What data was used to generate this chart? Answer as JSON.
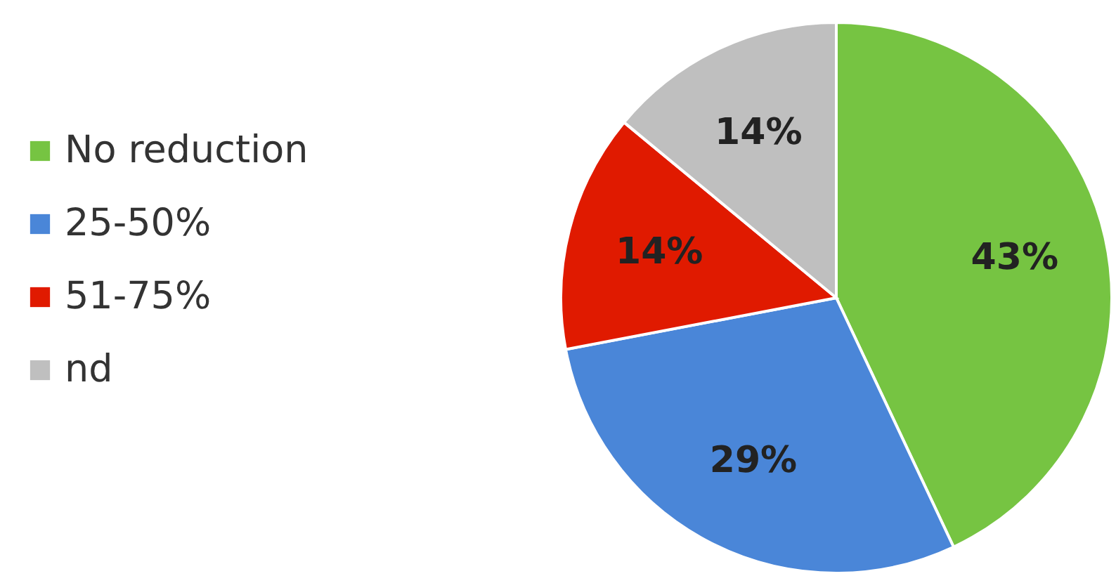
{
  "chart_data": {
    "type": "pie",
    "categories": [
      "No reduction",
      "25-50%",
      "51-75%",
      "nd"
    ],
    "values": [
      43,
      29,
      14,
      14
    ],
    "colors": [
      "#76c442",
      "#4a86d8",
      "#e01a00",
      "#bfbfbf"
    ],
    "value_labels": [
      "43%",
      "29%",
      "14%",
      "14%"
    ],
    "legend": "left"
  }
}
